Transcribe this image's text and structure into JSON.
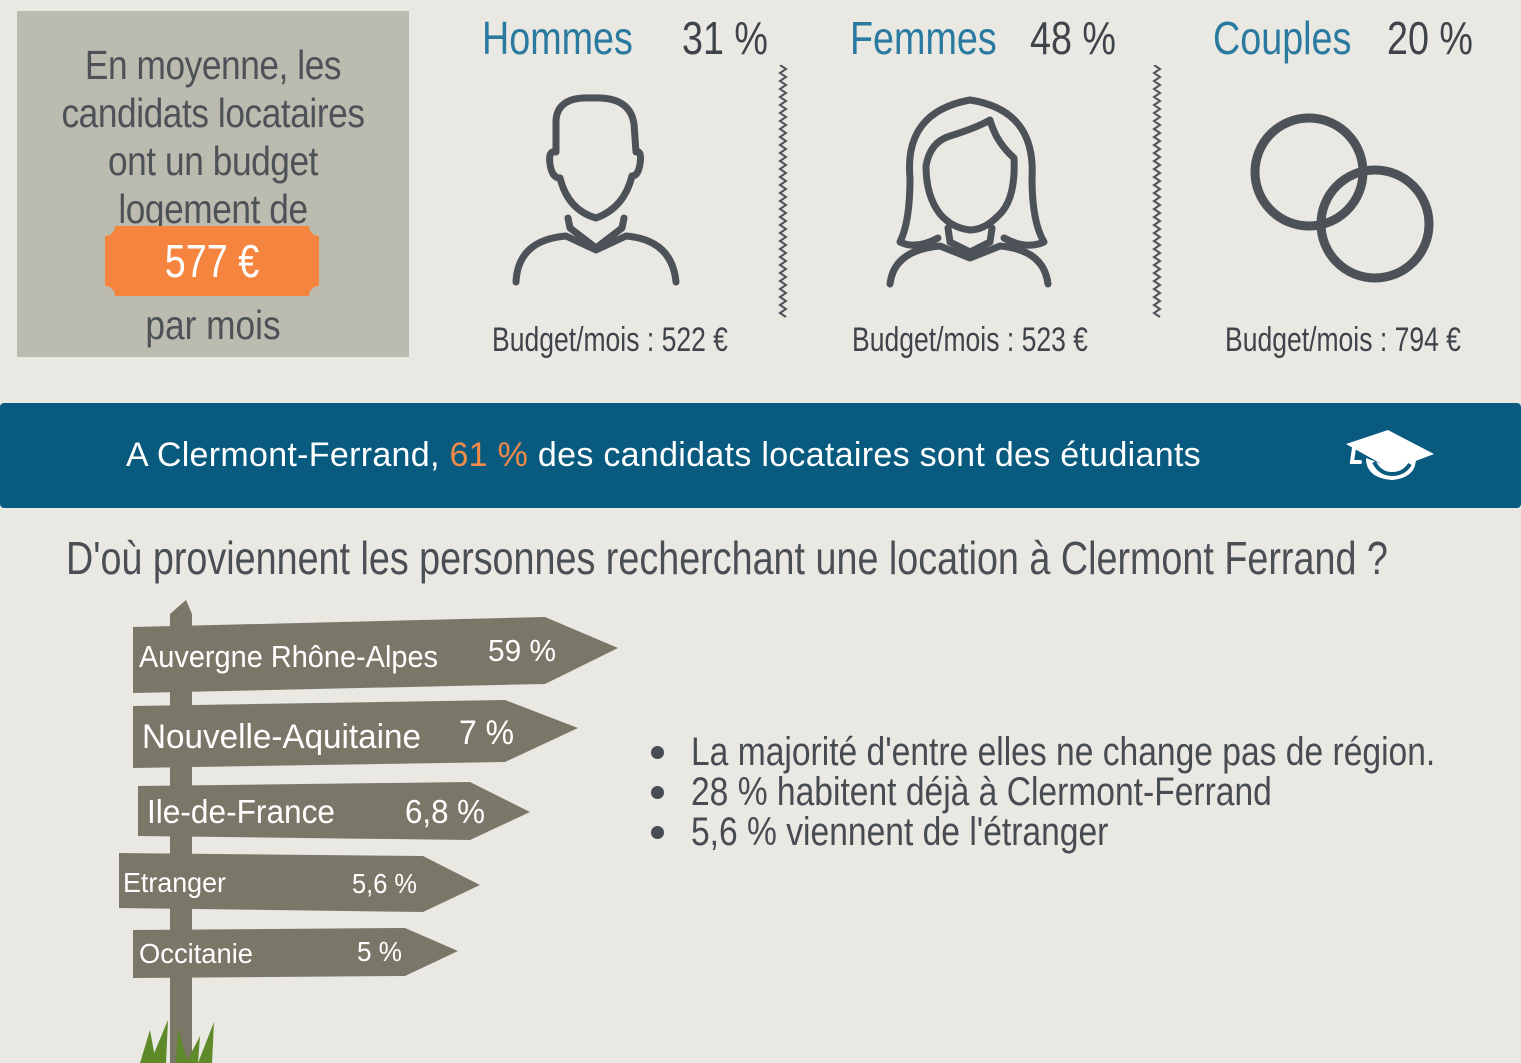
{
  "budget": {
    "intro_lines": [
      "En moyenne, les",
      "candidats locataires",
      "ont un budget",
      "logement de"
    ],
    "amount": "577 €",
    "per_month": "par mois",
    "tag_color": "#f5843e"
  },
  "demographics": [
    {
      "label": "Hommes",
      "percent": "31 %",
      "budget": "Budget/mois : 522 €",
      "icon": "man-icon"
    },
    {
      "label": "Femmes",
      "percent": "48 %",
      "budget": "Budget/mois : 523 €",
      "icon": "woman-icon"
    },
    {
      "label": "Couples",
      "percent": "20 %",
      "budget": "Budget/mois : 794 €",
      "icon": "rings-icon"
    }
  ],
  "banner": {
    "prefix": "A Clermont-Ferrand, ",
    "highlight": "61 %",
    "suffix": " des candidats locataires sont des étudiants",
    "icon": "graduation-cap-icon",
    "background": "#095a7f",
    "highlight_color": "#f08a47"
  },
  "origins": {
    "question": "D'où proviennent les personnes recherchant une location à Clermont Ferrand  ?",
    "signs": [
      {
        "region": "Auvergne Rhône-Alpes",
        "percent": "59 %"
      },
      {
        "region": "Nouvelle-Aquitaine",
        "percent": "7 %"
      },
      {
        "region": "Ile-de-France",
        "percent": "6,8 %"
      },
      {
        "region": "Etranger",
        "percent": "5,6 %"
      },
      {
        "region": "Occitanie",
        "percent": "5 %"
      }
    ],
    "sign_color": "#7b7768",
    "bullets": [
      "La majorité d'entre elles ne change pas de région.",
      "28 % habitent déjà à Clermont-Ferrand",
      "5,6 % viennent de l'étranger"
    ]
  }
}
